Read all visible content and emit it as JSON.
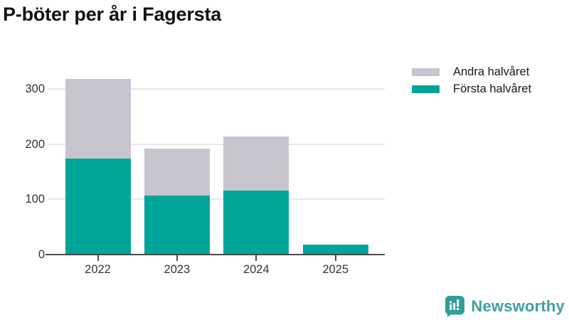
{
  "title": "P-böter per år i Fagersta",
  "legend": {
    "items": [
      {
        "label": "Andra halvåret",
        "color": "#c8c5ce"
      },
      {
        "label": "Första halvåret",
        "color": "#00a599"
      }
    ]
  },
  "chart_data": {
    "type": "bar",
    "stacked": true,
    "title": "P-böter per år i Fagersta",
    "categories": [
      "2022",
      "2023",
      "2024",
      "2025"
    ],
    "series": [
      {
        "name": "Första halvåret",
        "color": "#00a599",
        "values": [
          173,
          107,
          116,
          18
        ]
      },
      {
        "name": "Andra halvåret",
        "color": "#c8c5ce",
        "values": [
          145,
          84,
          97,
          0
        ]
      }
    ],
    "totals": [
      318,
      191,
      213,
      18
    ],
    "xlabel": "",
    "ylabel": "",
    "yticks": [
      0,
      100,
      200,
      300
    ],
    "ylim": [
      0,
      330
    ],
    "grid": "horizontal",
    "grid_color": "#e7e6ea",
    "axis_color": "#4a4a4a",
    "tick_text_color": "#333333",
    "legend_position": "top-right"
  },
  "branding": {
    "logo_text": "Newsworthy",
    "logo_text_color": "#3fa09d",
    "icon_color": "#2f9e98",
    "icon_name": "newsworthy-bar-chart-bubble-icon"
  }
}
